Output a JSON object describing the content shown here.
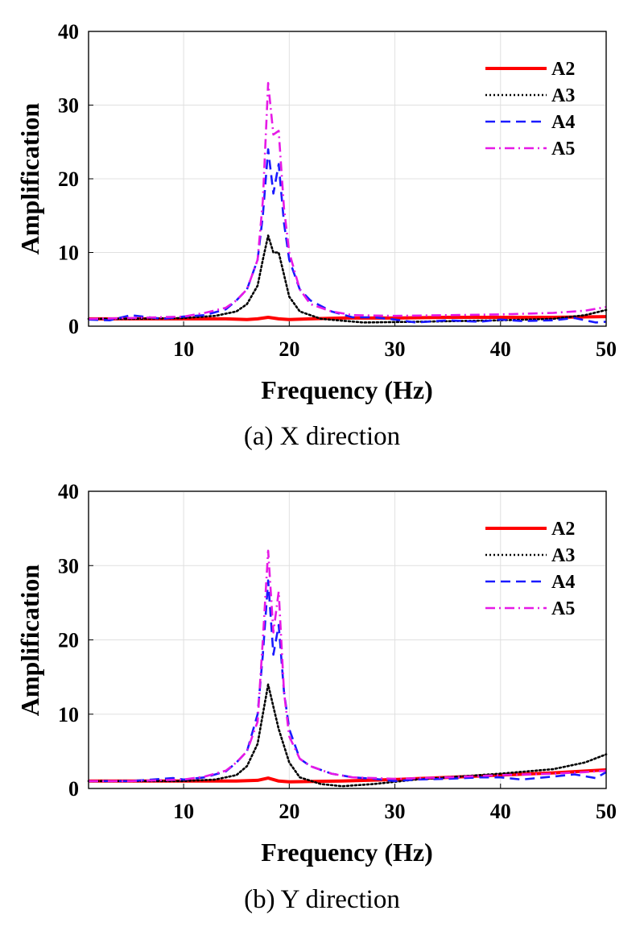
{
  "panels": [
    {
      "caption": "(a)  X  direction",
      "xlabel": "Frequency (Hz)",
      "ylabel": "Amplification"
    },
    {
      "caption": "(b)  Y  direction",
      "xlabel": "Frequency (Hz)",
      "ylabel": "Amplification"
    }
  ],
  "chart_data": [
    {
      "type": "line",
      "title": "",
      "xlabel": "Frequency (Hz)",
      "ylabel": "Amplification",
      "xlim": [
        1,
        50
      ],
      "ylim": [
        0,
        40
      ],
      "xticks": [
        10,
        20,
        30,
        40,
        50
      ],
      "yticks": [
        0,
        10,
        20,
        30,
        40
      ],
      "grid": true,
      "legend_position": "top-right",
      "series": [
        {
          "name": "A2",
          "color": "#ff0000",
          "style": "solid",
          "x": [
            1,
            5,
            10,
            14,
            16,
            17,
            18,
            19,
            20,
            22,
            25,
            30,
            35,
            40,
            45,
            50
          ],
          "y": [
            1.0,
            1.0,
            1.0,
            1.0,
            0.9,
            1.0,
            1.2,
            1.0,
            0.9,
            1.0,
            1.1,
            1.1,
            1.2,
            1.2,
            1.2,
            1.3
          ]
        },
        {
          "name": "A3",
          "color": "#000000",
          "style": "dotted",
          "x": [
            1,
            5,
            10,
            13,
            15,
            16,
            17,
            17.5,
            18,
            18.5,
            19,
            20,
            21,
            23,
            27,
            32,
            40,
            45,
            48,
            50
          ],
          "y": [
            1.0,
            1.0,
            1.1,
            1.4,
            2.0,
            3.0,
            5.5,
            9.0,
            12.3,
            10.0,
            10.0,
            4.0,
            2.0,
            1.0,
            0.5,
            0.6,
            0.8,
            1.0,
            1.5,
            2.2
          ]
        },
        {
          "name": "A4",
          "color": "#1a1aff",
          "style": "dashed",
          "x": [
            1,
            3,
            5,
            8,
            10,
            12,
            14,
            15,
            16,
            17,
            17.5,
            18,
            18.5,
            19,
            19.5,
            20,
            21,
            22,
            24,
            26,
            28,
            30,
            32,
            35,
            38,
            40,
            42,
            45,
            47,
            49,
            50
          ],
          "y": [
            0.9,
            0.8,
            1.5,
            1.0,
            1.3,
            1.5,
            2.3,
            3.5,
            5.0,
            9.0,
            15.0,
            24.0,
            18.0,
            22.0,
            14.0,
            9.0,
            5.0,
            3.5,
            2.0,
            1.2,
            1.2,
            0.9,
            0.5,
            0.8,
            0.6,
            0.9,
            0.7,
            0.8,
            1.1,
            0.5,
            0.6
          ]
        },
        {
          "name": "A5",
          "color": "#e619e6",
          "style": "dashdot",
          "x": [
            1,
            5,
            10,
            12,
            14,
            15,
            16,
            17,
            17.5,
            18,
            18.5,
            19,
            19.5,
            20,
            21,
            22,
            24,
            26,
            30,
            35,
            40,
            45,
            48,
            50
          ],
          "y": [
            1.0,
            1.1,
            1.3,
            1.8,
            2.5,
            3.5,
            5.0,
            9.0,
            17.0,
            33.0,
            26.0,
            26.5,
            16.0,
            10.0,
            5.0,
            3.0,
            2.0,
            1.5,
            1.4,
            1.5,
            1.6,
            1.8,
            2.1,
            2.6
          ]
        }
      ]
    },
    {
      "type": "line",
      "title": "",
      "xlabel": "Frequency (Hz)",
      "ylabel": "Amplification",
      "xlim": [
        1,
        50
      ],
      "ylim": [
        0,
        40
      ],
      "xticks": [
        10,
        20,
        30,
        40,
        50
      ],
      "yticks": [
        0,
        10,
        20,
        30,
        40
      ],
      "grid": true,
      "legend_position": "top-right",
      "series": [
        {
          "name": "A2",
          "color": "#ff0000",
          "style": "solid",
          "x": [
            1,
            5,
            10,
            15,
            17,
            18,
            19,
            20,
            25,
            30,
            35,
            40,
            45,
            50
          ],
          "y": [
            1.0,
            1.0,
            1.0,
            1.0,
            1.1,
            1.4,
            1.0,
            0.9,
            1.0,
            1.2,
            1.5,
            1.8,
            2.1,
            2.5
          ]
        },
        {
          "name": "A3",
          "color": "#000000",
          "style": "dotted",
          "x": [
            1,
            5,
            10,
            13,
            15,
            16,
            17,
            17.5,
            18,
            18.5,
            19,
            20,
            21,
            23,
            25,
            28,
            32,
            40,
            45,
            48,
            50
          ],
          "y": [
            1.0,
            1.0,
            1.0,
            1.2,
            1.8,
            3.0,
            6.0,
            10.0,
            14.0,
            11.0,
            8.0,
            3.5,
            1.5,
            0.6,
            0.3,
            0.6,
            1.2,
            2.0,
            2.6,
            3.5,
            4.6
          ]
        },
        {
          "name": "A4",
          "color": "#1a1aff",
          "style": "dashed",
          "x": [
            1,
            5,
            9,
            10,
            12,
            14,
            15,
            16,
            17,
            17.5,
            18,
            18.5,
            19,
            19.5,
            20,
            21,
            22,
            24,
            26,
            28,
            30,
            32,
            35,
            38,
            40,
            42,
            45,
            47,
            49,
            50
          ],
          "y": [
            1.0,
            1.0,
            1.4,
            1.2,
            1.5,
            2.3,
            3.5,
            5.0,
            10.0,
            18.0,
            28.0,
            18.0,
            22.0,
            13.0,
            8.0,
            4.0,
            3.0,
            2.0,
            1.5,
            1.3,
            1.0,
            1.2,
            1.3,
            1.5,
            1.5,
            1.2,
            1.6,
            1.9,
            1.4,
            2.2
          ]
        },
        {
          "name": "A5",
          "color": "#e619e6",
          "style": "dashdot",
          "x": [
            1,
            5,
            10,
            12,
            14,
            15,
            16,
            17,
            17.5,
            18,
            18.5,
            19,
            19.5,
            20,
            21,
            22,
            24,
            26,
            30,
            35,
            40,
            45,
            48,
            50
          ],
          "y": [
            1.0,
            1.0,
            1.2,
            1.6,
            2.4,
            3.5,
            5.0,
            9.0,
            20.0,
            32.0,
            21.0,
            26.5,
            13.0,
            7.0,
            4.0,
            3.0,
            2.0,
            1.5,
            1.3,
            1.5,
            1.8,
            2.0,
            2.2,
            2.4
          ]
        }
      ]
    }
  ]
}
